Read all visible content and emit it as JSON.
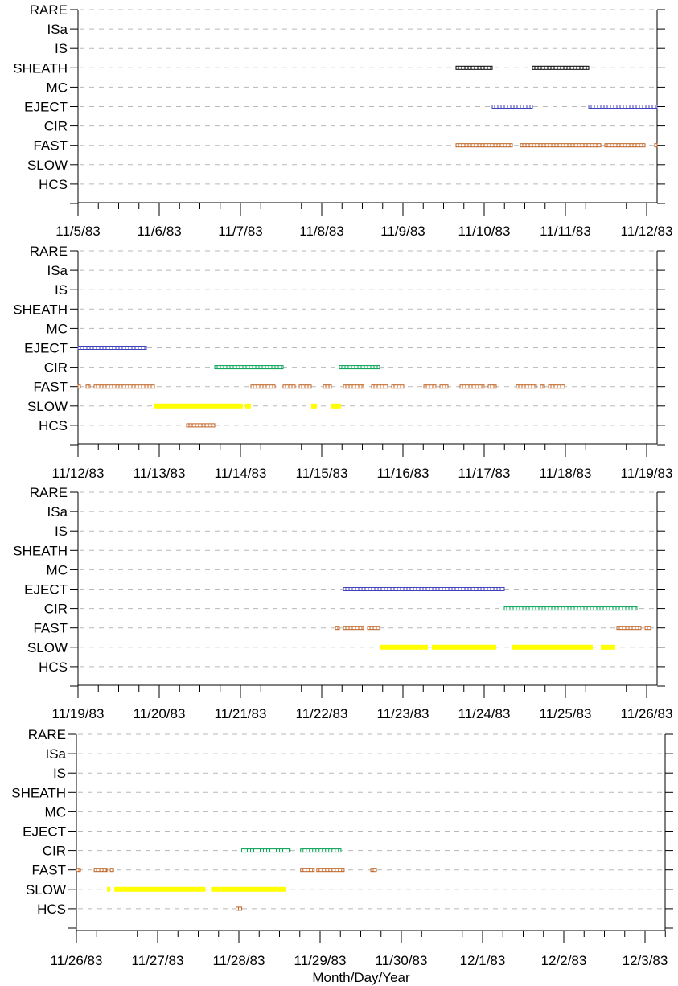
{
  "categories": [
    "RARE",
    "ISa",
    "IS",
    "SHEATH",
    "MC",
    "EJECT",
    "CIR",
    "FAST",
    "SLOW",
    "HCS"
  ],
  "series_colors": {
    "SHEATH": "#000000",
    "EJECT": "#4040c0",
    "CIR": "#00a050",
    "FAST": "#c06020",
    "SLOW": "#ffff00",
    "HCS": "#c06020"
  },
  "xlabel": "Month/Day/Year",
  "chart_data": [
    {
      "type": "timeline",
      "panel": 1,
      "x_ticks": [
        "11/5/83",
        "11/6/83",
        "11/7/83",
        "11/8/83",
        "11/9/83",
        "11/10/83",
        "11/11/83",
        "11/12/83"
      ],
      "xlim_days": [
        0,
        7.2
      ],
      "intervals": [
        {
          "category": "SHEATH",
          "start": 4.7,
          "end": 5.15
        },
        {
          "category": "SHEATH",
          "start": 5.65,
          "end": 6.35
        },
        {
          "category": "EJECT",
          "start": 5.15,
          "end": 5.65
        },
        {
          "category": "EJECT",
          "start": 6.35,
          "end": 7.2
        },
        {
          "category": "FAST",
          "start": 4.7,
          "end": 5.4
        },
        {
          "category": "FAST",
          "start": 5.5,
          "end": 6.5
        },
        {
          "category": "FAST",
          "start": 6.55,
          "end": 7.05
        },
        {
          "category": "FAST",
          "start": 7.17,
          "end": 7.2
        }
      ]
    },
    {
      "type": "timeline",
      "panel": 2,
      "x_ticks": [
        "11/12/83",
        "11/13/83",
        "11/14/83",
        "11/15/83",
        "11/16/83",
        "11/17/83",
        "11/18/83",
        "11/19/83"
      ],
      "xlim_days": [
        0,
        7.2
      ],
      "intervals": [
        {
          "category": "EJECT",
          "start": 0.0,
          "end": 0.85
        },
        {
          "category": "CIR",
          "start": 1.7,
          "end": 2.55
        },
        {
          "category": "CIR",
          "start": 3.25,
          "end": 3.75
        },
        {
          "category": "FAST",
          "start": 0.0,
          "end": 0.03
        },
        {
          "category": "FAST",
          "start": 0.1,
          "end": 0.15
        },
        {
          "category": "FAST",
          "start": 0.2,
          "end": 0.95
        },
        {
          "category": "FAST",
          "start": 2.15,
          "end": 2.45
        },
        {
          "category": "FAST",
          "start": 2.55,
          "end": 2.7
        },
        {
          "category": "FAST",
          "start": 2.75,
          "end": 2.9
        },
        {
          "category": "FAST",
          "start": 3.05,
          "end": 3.15
        },
        {
          "category": "FAST",
          "start": 3.3,
          "end": 3.55
        },
        {
          "category": "FAST",
          "start": 3.65,
          "end": 3.85
        },
        {
          "category": "FAST",
          "start": 3.9,
          "end": 4.05
        },
        {
          "category": "FAST",
          "start": 4.3,
          "end": 4.45
        },
        {
          "category": "FAST",
          "start": 4.5,
          "end": 4.6
        },
        {
          "category": "FAST",
          "start": 4.75,
          "end": 5.05
        },
        {
          "category": "FAST",
          "start": 5.1,
          "end": 5.2
        },
        {
          "category": "FAST",
          "start": 5.45,
          "end": 5.7
        },
        {
          "category": "FAST",
          "start": 5.75,
          "end": 5.8
        },
        {
          "category": "FAST",
          "start": 5.85,
          "end": 6.05
        },
        {
          "category": "SLOW",
          "start": 0.95,
          "end": 2.05
        },
        {
          "category": "SLOW",
          "start": 2.08,
          "end": 2.15
        },
        {
          "category": "SLOW",
          "start": 2.9,
          "end": 2.97
        },
        {
          "category": "SLOW",
          "start": 3.15,
          "end": 3.27
        },
        {
          "category": "HCS",
          "start": 1.35,
          "end": 1.7
        }
      ]
    },
    {
      "type": "timeline",
      "panel": 3,
      "x_ticks": [
        "11/19/83",
        "11/20/83",
        "11/21/83",
        "11/22/83",
        "11/23/83",
        "11/24/83",
        "11/25/83",
        "11/26/83"
      ],
      "xlim_days": [
        0,
        7.2
      ],
      "intervals": [
        {
          "category": "EJECT",
          "start": 3.3,
          "end": 5.3
        },
        {
          "category": "CIR",
          "start": 5.3,
          "end": 6.95
        },
        {
          "category": "FAST",
          "start": 3.2,
          "end": 3.25
        },
        {
          "category": "FAST",
          "start": 3.3,
          "end": 3.55
        },
        {
          "category": "FAST",
          "start": 3.6,
          "end": 3.75
        },
        {
          "category": "FAST",
          "start": 6.7,
          "end": 7.0
        },
        {
          "category": "FAST",
          "start": 7.05,
          "end": 7.12
        },
        {
          "category": "SLOW",
          "start": 3.75,
          "end": 4.35
        },
        {
          "category": "SLOW",
          "start": 4.4,
          "end": 5.2
        },
        {
          "category": "SLOW",
          "start": 5.4,
          "end": 6.4
        },
        {
          "category": "SLOW",
          "start": 6.5,
          "end": 6.68
        }
      ]
    },
    {
      "type": "timeline",
      "panel": 4,
      "x_ticks": [
        "11/26/83",
        "11/27/83",
        "11/28/83",
        "11/29/83",
        "11/30/83",
        "12/1/83",
        "12/2/83",
        "12/3/83"
      ],
      "xlim_days": [
        0,
        7.3
      ],
      "intervals": [
        {
          "category": "CIR",
          "start": 2.05,
          "end": 2.65
        },
        {
          "category": "CIR",
          "start": 2.78,
          "end": 3.28
        },
        {
          "category": "FAST",
          "start": 0.0,
          "end": 0.05
        },
        {
          "category": "FAST",
          "start": 0.22,
          "end": 0.38
        },
        {
          "category": "FAST",
          "start": 0.42,
          "end": 0.46
        },
        {
          "category": "FAST",
          "start": 2.78,
          "end": 2.95
        },
        {
          "category": "FAST",
          "start": 2.98,
          "end": 3.32
        },
        {
          "category": "FAST",
          "start": 3.65,
          "end": 3.72
        },
        {
          "category": "SLOW",
          "start": 0.38,
          "end": 0.42
        },
        {
          "category": "SLOW",
          "start": 0.47,
          "end": 1.6
        },
        {
          "category": "SLOW",
          "start": 1.67,
          "end": 2.6
        },
        {
          "category": "HCS",
          "start": 1.98,
          "end": 2.05
        }
      ]
    }
  ]
}
